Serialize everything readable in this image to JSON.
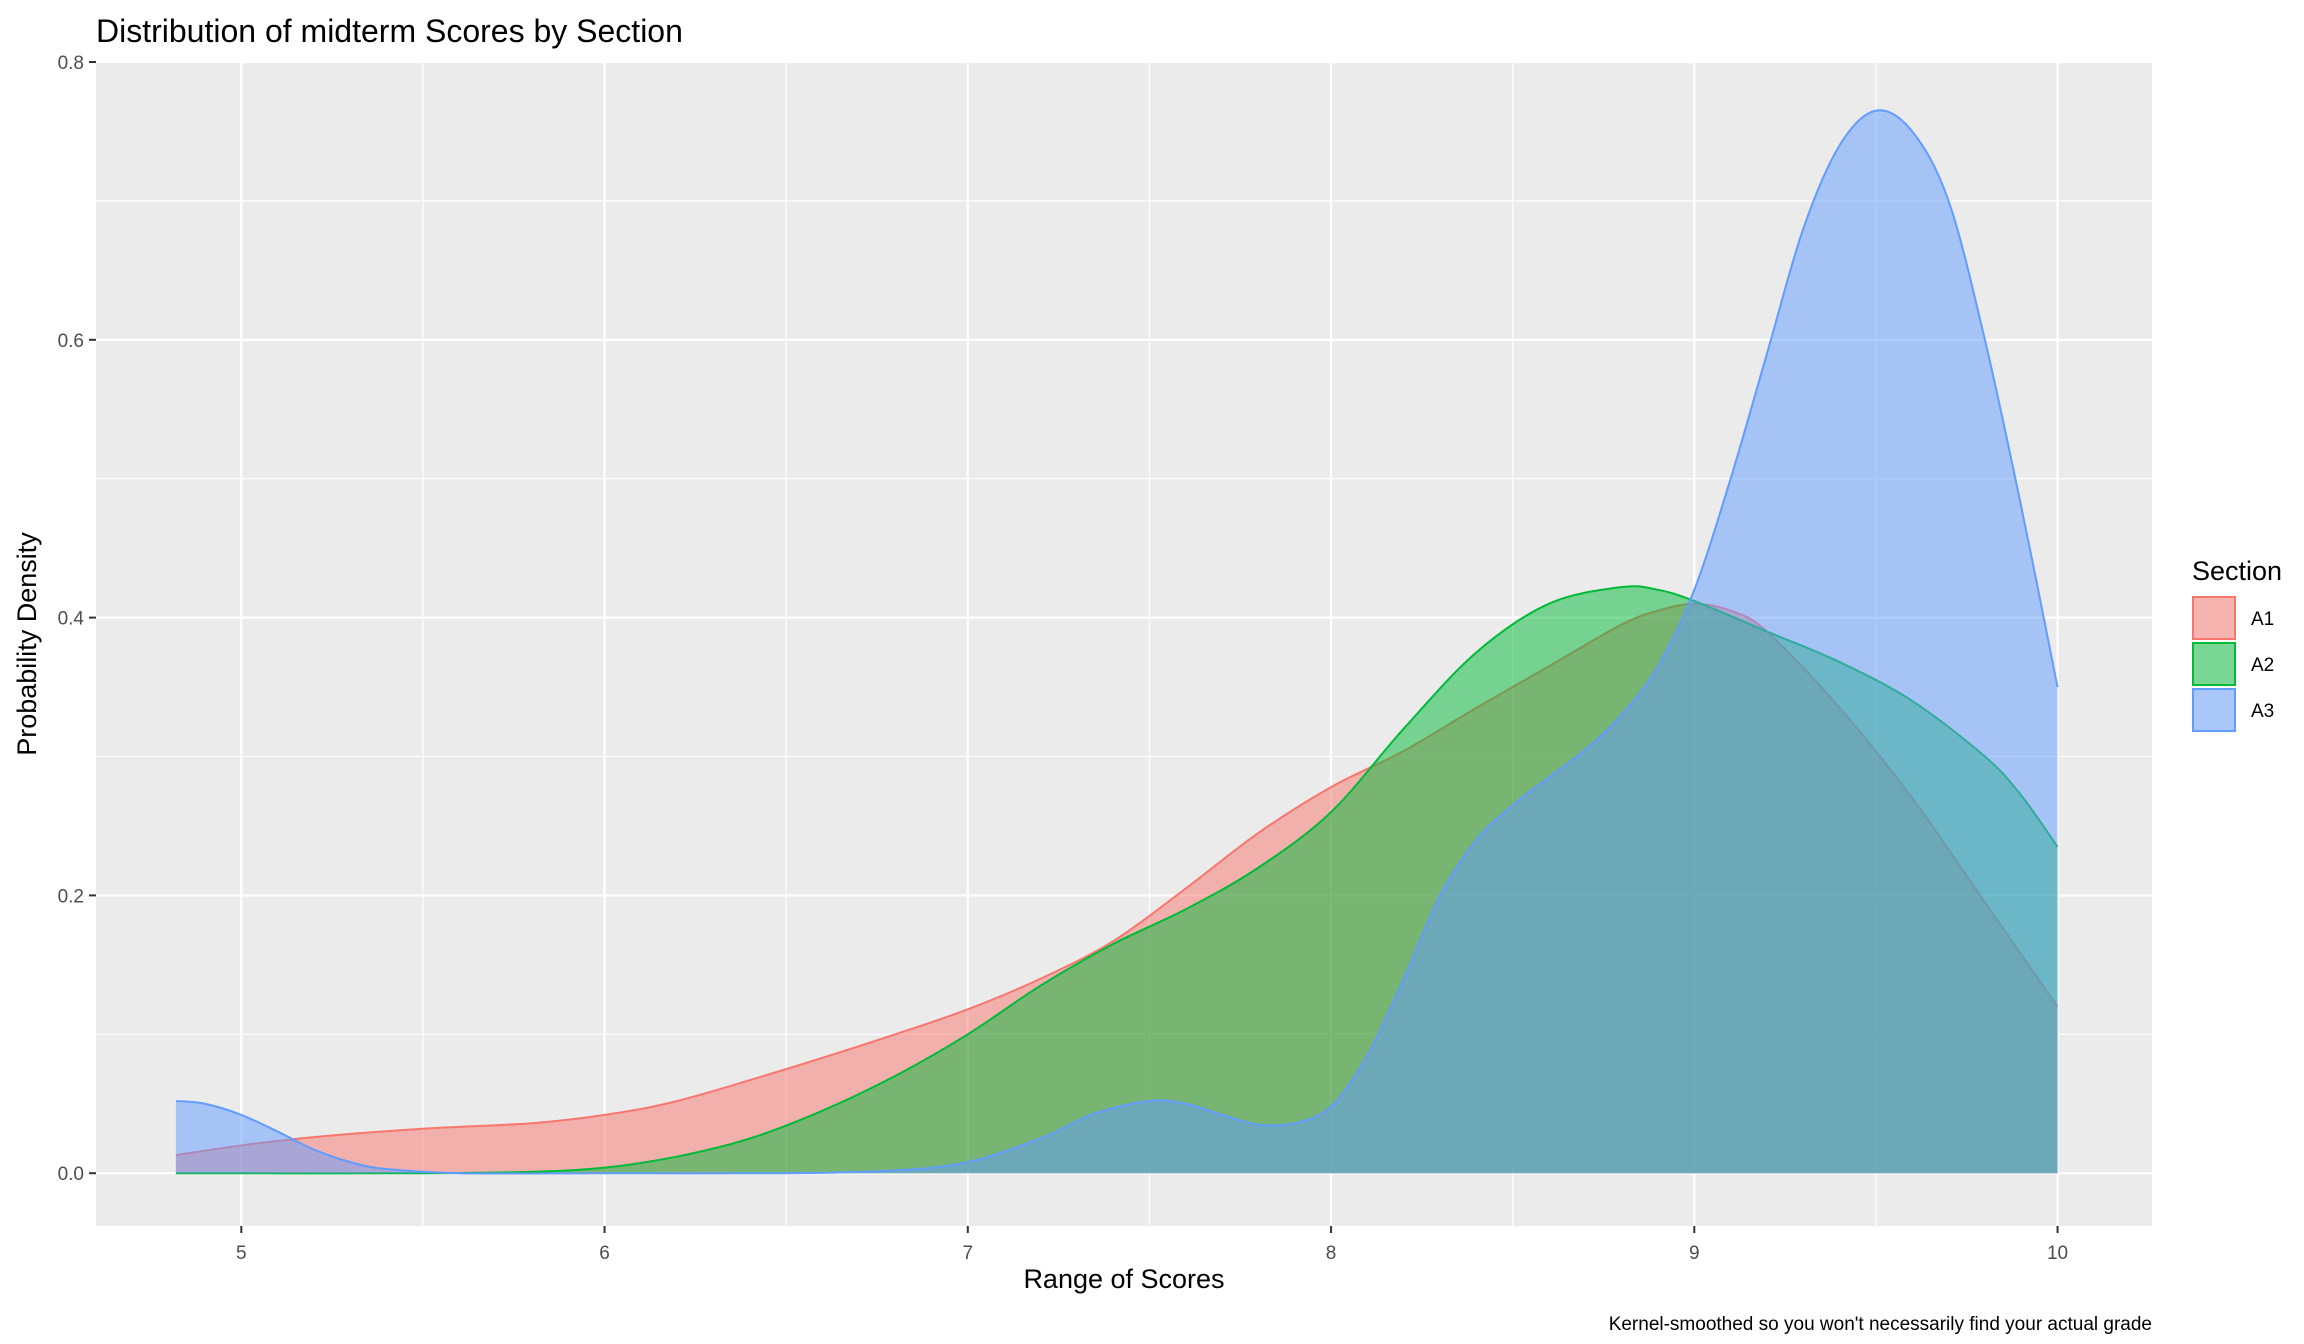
{
  "chart_data": {
    "type": "area",
    "subtype": "density",
    "title": "Distribution of midterm Scores by Section",
    "xlabel": "Range of Scores",
    "ylabel": "Probability Density",
    "caption": "Kernel-smoothed so you won't necessarily find your actual grade",
    "xlim": [
      4.6,
      10.26
    ],
    "ylim": [
      -0.038,
      0.8
    ],
    "x_ticks": [
      5,
      6,
      7,
      8,
      9,
      10
    ],
    "x_tick_labels": [
      "5",
      "6",
      "7",
      "8",
      "9",
      "10"
    ],
    "y_ticks": [
      0.0,
      0.2,
      0.4,
      0.6,
      0.8
    ],
    "y_tick_labels": [
      "0.0",
      "0.2",
      "0.4",
      "0.6",
      "0.8"
    ],
    "grid": true,
    "legend": {
      "title": "Section",
      "position": "right"
    },
    "fill_opacity": 0.5,
    "series": [
      {
        "name": "A1",
        "color": "#F8766D",
        "x": [
          4.82,
          5.0,
          5.2,
          5.5,
          5.8,
          6.0,
          6.2,
          6.5,
          6.8,
          7.0,
          7.2,
          7.4,
          7.6,
          7.8,
          8.0,
          8.2,
          8.4,
          8.6,
          8.8,
          8.9,
          9.0,
          9.1,
          9.2,
          9.4,
          9.6,
          9.8,
          10.0
        ],
        "y": [
          0.013,
          0.02,
          0.026,
          0.032,
          0.036,
          0.042,
          0.052,
          0.075,
          0.1,
          0.118,
          0.14,
          0.167,
          0.205,
          0.245,
          0.278,
          0.304,
          0.335,
          0.365,
          0.395,
          0.405,
          0.41,
          0.405,
          0.39,
          0.335,
          0.27,
          0.195,
          0.12
        ]
      },
      {
        "name": "A2",
        "color": "#00BA38",
        "x": [
          4.82,
          5.5,
          5.8,
          6.0,
          6.2,
          6.4,
          6.6,
          6.8,
          7.0,
          7.2,
          7.4,
          7.6,
          7.8,
          8.0,
          8.2,
          8.4,
          8.6,
          8.8,
          8.9,
          9.0,
          9.2,
          9.4,
          9.6,
          9.8,
          9.9,
          10.0
        ],
        "y": [
          0.0,
          0.0,
          0.001,
          0.004,
          0.012,
          0.025,
          0.045,
          0.07,
          0.1,
          0.135,
          0.165,
          0.19,
          0.22,
          0.26,
          0.32,
          0.375,
          0.41,
          0.422,
          0.42,
          0.412,
          0.39,
          0.368,
          0.34,
          0.3,
          0.272,
          0.235
        ]
      },
      {
        "name": "A3",
        "color": "#619CFF",
        "x": [
          4.82,
          4.9,
          5.0,
          5.1,
          5.2,
          5.3,
          5.4,
          5.6,
          6.0,
          6.5,
          6.8,
          7.0,
          7.2,
          7.35,
          7.5,
          7.6,
          7.7,
          7.8,
          7.9,
          8.0,
          8.1,
          8.2,
          8.3,
          8.4,
          8.5,
          8.6,
          8.7,
          8.8,
          8.9,
          9.0,
          9.1,
          9.2,
          9.3,
          9.4,
          9.5,
          9.6,
          9.7,
          9.8,
          9.9,
          10.0
        ],
        "y": [
          0.052,
          0.05,
          0.042,
          0.03,
          0.017,
          0.008,
          0.003,
          0.0,
          0.0,
          0.0,
          0.002,
          0.008,
          0.025,
          0.043,
          0.052,
          0.05,
          0.042,
          0.035,
          0.036,
          0.048,
          0.085,
          0.14,
          0.2,
          0.24,
          0.265,
          0.285,
          0.305,
          0.33,
          0.365,
          0.42,
          0.5,
          0.59,
          0.68,
          0.74,
          0.765,
          0.75,
          0.7,
          0.6,
          0.48,
          0.35
        ]
      }
    ]
  }
}
